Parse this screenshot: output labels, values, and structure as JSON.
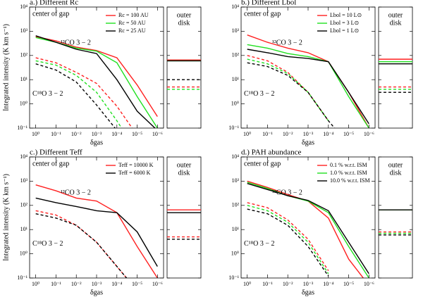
{
  "chart_data": [
    {
      "type": "line",
      "title": "a.) Different Rc",
      "ylabel": "Integrated intensity (K km s⁻¹)",
      "xlabel": "δgas",
      "log_x": true,
      "log_y": true,
      "annotations": [
        "center of gap",
        "¹²CO 3 − 2",
        "C¹⁸O 3 − 2"
      ],
      "side_label": [
        "outer",
        "disk"
      ],
      "x": [
        1,
        0.1,
        0.01,
        0.001,
        0.0001,
        1e-05,
        1e-06
      ],
      "xlim": [
        2,
        5e-07
      ],
      "xticks": [
        {
          "value": 1,
          "label": "10⁰"
        },
        {
          "value": 0.1,
          "label": "10⁻¹"
        },
        {
          "value": 0.01,
          "label": "10⁻²"
        },
        {
          "value": 0.001,
          "label": "10⁻³"
        },
        {
          "value": 0.0001,
          "label": "10⁻⁴"
        },
        {
          "value": 1e-05,
          "label": "10⁻⁵"
        },
        {
          "value": 1e-06,
          "label": "10⁻⁶"
        }
      ],
      "ylim": [
        0.1,
        10000
      ],
      "yticks": [
        {
          "value": 0.1,
          "label": "10⁻¹"
        },
        {
          "value": 1,
          "label": "10⁰"
        },
        {
          "value": 10,
          "label": "10¹"
        },
        {
          "value": 100,
          "label": "10²"
        },
        {
          "value": 1000,
          "label": "10³"
        },
        {
          "value": 10000,
          "label": "10⁴"
        }
      ],
      "series": [
        {
          "name": "Rc = 100 AU",
          "color": "#ff2020",
          "values": [
            600,
            400,
            220,
            160,
            80,
            6,
            0.3
          ],
          "outer": 65
        },
        {
          "name": "Rc = 50 AU",
          "color": "#20e020",
          "values": [
            550,
            350,
            200,
            150,
            50,
            2,
            0.1
          ],
          "outer": 60
        },
        {
          "name": "Rc = 25 AU",
          "color": "#000000",
          "values": [
            650,
            350,
            180,
            120,
            10,
            0.5,
            0.08
          ],
          "outer": 60
        }
      ],
      "series_dashed": [
        {
          "color": "#ff2020",
          "values": [
            80,
            50,
            20,
            7,
            0.8,
            0.05,
            null
          ],
          "outer": 5
        },
        {
          "color": "#20e020",
          "values": [
            60,
            40,
            15,
            3,
            0.2,
            0.01,
            null
          ],
          "outer": 4
        },
        {
          "color": "#000000",
          "values": [
            45,
            25,
            8,
            0.9,
            0.08,
            null,
            null
          ],
          "outer": 10
        }
      ]
    },
    {
      "type": "line",
      "title": "b.) Different Lbol",
      "xlabel": "δgas",
      "log_x": true,
      "log_y": true,
      "annotations": [
        "center of gap",
        "¹²CO 3 − 2",
        "C¹⁸O 3 − 2"
      ],
      "side_label": [
        "outer",
        "disk"
      ],
      "x": [
        1,
        0.1,
        0.01,
        0.001,
        0.0001,
        1e-05,
        1e-06
      ],
      "xlim": [
        2,
        5e-07
      ],
      "xticks": [
        {
          "value": 1,
          "label": "10⁰"
        },
        {
          "value": 0.1,
          "label": "10⁻¹"
        },
        {
          "value": 0.01,
          "label": "10⁻²"
        },
        {
          "value": 0.001,
          "label": "10⁻³"
        },
        {
          "value": 0.0001,
          "label": "10⁻⁴"
        },
        {
          "value": 1e-05,
          "label": "10⁻⁵"
        },
        {
          "value": 1e-06,
          "label": "10⁻⁶"
        }
      ],
      "ylim": [
        0.1,
        10000
      ],
      "yticks": [
        {
          "value": 0.1,
          "label": "10⁻¹"
        },
        {
          "value": 1,
          "label": "10⁰"
        },
        {
          "value": 10,
          "label": "10¹"
        },
        {
          "value": 100,
          "label": "10²"
        },
        {
          "value": 1000,
          "label": "10³"
        },
        {
          "value": 10000,
          "label": "10⁴"
        }
      ],
      "series": [
        {
          "name": "Lbol = 10 L⊙",
          "color": "#ff2020",
          "values": [
            700,
            350,
            200,
            130,
            55,
            3,
            0.1
          ],
          "outer": 70
        },
        {
          "name": "Lbol = 3 L⊙",
          "color": "#20e020",
          "values": [
            280,
            200,
            120,
            90,
            55,
            2,
            0.1
          ],
          "outer": 55
        },
        {
          "name": "Lbol = 1 L⊙",
          "color": "#000000",
          "values": [
            180,
            130,
            90,
            75,
            55,
            3,
            0.15
          ],
          "outer": 45
        }
      ],
      "series_dashed": [
        {
          "color": "#ff2020",
          "values": [
            100,
            60,
            20,
            3,
            0.2,
            null,
            null
          ],
          "outer": 5
        },
        {
          "color": "#20e020",
          "values": [
            70,
            45,
            18,
            3,
            0.2,
            null,
            null
          ],
          "outer": 4
        },
        {
          "color": "#000000",
          "values": [
            50,
            35,
            15,
            3,
            0.2,
            0.02,
            null
          ],
          "outer": 3
        }
      ]
    },
    {
      "type": "line",
      "title": "c.) Different Teff",
      "ylabel": "Integrated intensity (K km s⁻¹)",
      "xlabel": "δgas",
      "log_x": true,
      "log_y": true,
      "annotations": [
        "center of gap",
        "¹²CO 3 − 2",
        "C¹⁸O 3 − 2"
      ],
      "side_label": [
        "outer",
        "disk"
      ],
      "x": [
        1,
        0.1,
        0.01,
        0.001,
        0.0001,
        1e-05,
        1e-06
      ],
      "xlim": [
        2,
        5e-07
      ],
      "xticks": [
        {
          "value": 1,
          "label": "10⁰"
        },
        {
          "value": 0.1,
          "label": "10⁻¹"
        },
        {
          "value": 0.01,
          "label": "10⁻²"
        },
        {
          "value": 0.001,
          "label": "10⁻³"
        },
        {
          "value": 0.0001,
          "label": "10⁻⁴"
        },
        {
          "value": 1e-05,
          "label": "10⁻⁵"
        },
        {
          "value": 1e-06,
          "label": "10⁻⁶"
        }
      ],
      "ylim": [
        0.1,
        10000
      ],
      "yticks": [
        {
          "value": 0.1,
          "label": "10⁻¹"
        },
        {
          "value": 1,
          "label": "10⁰"
        },
        {
          "value": 10,
          "label": "10¹"
        },
        {
          "value": 100,
          "label": "10²"
        },
        {
          "value": 1000,
          "label": "10³"
        },
        {
          "value": 10000,
          "label": "10⁴"
        }
      ],
      "series": [
        {
          "name": "Teff = 10000 K",
          "color": "#ff2020",
          "values": [
            700,
            400,
            200,
            150,
            50,
            2,
            0.1
          ],
          "outer": 65
        },
        {
          "name": "Teff = 6000 K",
          "color": "#000000",
          "values": [
            200,
            130,
            90,
            60,
            50,
            8,
            0.3
          ],
          "outer": 50
        }
      ],
      "series_dashed": [
        {
          "color": "#ff2020",
          "values": [
            60,
            40,
            15,
            3,
            0.3,
            0.03,
            null
          ],
          "outer": 5
        },
        {
          "color": "#000000",
          "values": [
            45,
            30,
            15,
            3,
            0.3,
            0.03,
            null
          ],
          "outer": 4
        }
      ]
    },
    {
      "type": "line",
      "title": "d.) PAH abundance",
      "xlabel": "δgas",
      "log_x": true,
      "log_y": true,
      "annotations": [
        "center of gap",
        "¹²CO 3 − 2",
        "C¹⁸O 3 − 2"
      ],
      "side_label": [
        "outer",
        "disk"
      ],
      "x": [
        1,
        0.1,
        0.01,
        0.001,
        0.0001,
        1e-05,
        1e-06
      ],
      "xlim": [
        2,
        5e-07
      ],
      "xticks": [
        {
          "value": 1,
          "label": "10⁰"
        },
        {
          "value": 0.1,
          "label": "10⁻¹"
        },
        {
          "value": 0.01,
          "label": "10⁻²"
        },
        {
          "value": 0.001,
          "label": "10⁻³"
        },
        {
          "value": 0.0001,
          "label": "10⁻⁴"
        },
        {
          "value": 1e-05,
          "label": "10⁻⁵"
        },
        {
          "value": 1e-06,
          "label": "10⁻⁶"
        }
      ],
      "ylim": [
        0.1,
        10000
      ],
      "yticks": [
        {
          "value": 0.1,
          "label": "10⁻¹"
        },
        {
          "value": 1,
          "label": "10⁰"
        },
        {
          "value": 10,
          "label": "10¹"
        },
        {
          "value": 100,
          "label": "10²"
        },
        {
          "value": 1000,
          "label": "10³"
        },
        {
          "value": 10000,
          "label": "10⁴"
        }
      ],
      "series": [
        {
          "name": "0.1 % w.r.t. ISM",
          "color": "#ff2020",
          "values": [
            1000,
            550,
            280,
            150,
            30,
            0.6,
            0.05
          ],
          "outer": 65
        },
        {
          "name": "1.0 % w.r.t. ISM",
          "color": "#20e020",
          "values": [
            900,
            500,
            250,
            150,
            50,
            2,
            0.1
          ],
          "outer": 65
        },
        {
          "name": "10.0 % w.r.t. ISM",
          "color": "#000000",
          "values": [
            800,
            450,
            250,
            160,
            60,
            3,
            0.15
          ],
          "outer": 65
        }
      ],
      "series_dashed": [
        {
          "color": "#ff2020",
          "values": [
            130,
            80,
            25,
            4,
            0.2,
            null,
            null
          ],
          "outer": 8
        },
        {
          "color": "#20e020",
          "values": [
            100,
            60,
            20,
            3,
            0.15,
            null,
            null
          ],
          "outer": 7
        },
        {
          "color": "#000000",
          "values": [
            70,
            45,
            15,
            2,
            0.12,
            null,
            null
          ],
          "outer": 6
        }
      ]
    }
  ]
}
